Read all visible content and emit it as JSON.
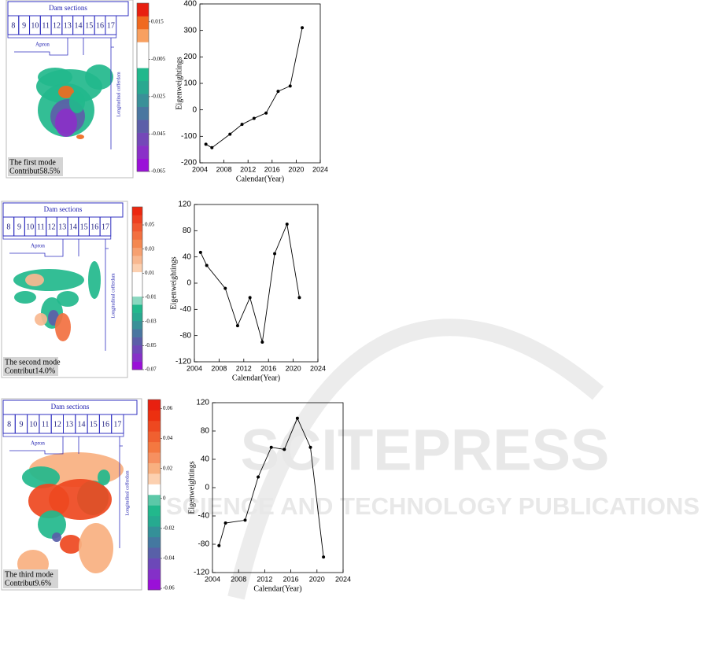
{
  "watermark": {
    "title": "SCITEPRESS",
    "subtitle": "SCIENCE AND TECHNOLOGY PUBLICATIONS"
  },
  "maps": [
    {
      "header": "Dam sections",
      "sections": [
        "8",
        "9",
        "10",
        "11",
        "12",
        "13",
        "14",
        "15",
        "16",
        "17"
      ],
      "apron": "Apron",
      "cofferdam": "Longitudinal cofferdam",
      "mode": "The first mode",
      "contribution": "Contribut58.5%",
      "colorbar": {
        "lim": [
          -0.065,
          0.025
        ],
        "ticks": [
          0.015,
          -0.005,
          -0.025,
          -0.045,
          -0.065
        ],
        "colors": [
          "#9a10d8",
          "#8a30c8",
          "#7448b8",
          "#5c5ea8",
          "#4a76a0",
          "#3a9098",
          "#2aa890",
          "#22b88c",
          "#ffffff",
          "#ffffff",
          "#f8a060",
          "#f06a20",
          "#e82010"
        ]
      }
    },
    {
      "header": "Dam sections",
      "sections": [
        "8",
        "9",
        "10",
        "11",
        "12",
        "13",
        "14",
        "15",
        "16",
        "17"
      ],
      "apron": "Apron",
      "cofferdam": "Longitudinal cofferdam",
      "mode": "The second mode",
      "contribution": "Contribut14.0%",
      "colorbar": {
        "lim": [
          -0.07,
          0.065
        ],
        "ticks": [
          0.05,
          0.03,
          0.01,
          -0.01,
          -0.03,
          -0.05,
          -0.07
        ],
        "colors": [
          "#9a10d8",
          "#8630c8",
          "#7048b8",
          "#5c5ea8",
          "#4a76a0",
          "#3a9098",
          "#2aa890",
          "#22b88c",
          "#8ad8c0",
          "#ffffff",
          "#ffffff",
          "#ffffff",
          "#fcd0b0",
          "#f8b890",
          "#f6a070",
          "#f48850",
          "#f27040",
          "#f05830",
          "#ee4020",
          "#ec2810"
        ]
      }
    },
    {
      "header": "Dam sections",
      "sections": [
        "8",
        "9",
        "10",
        "11",
        "12",
        "13",
        "14",
        "15",
        "16",
        "17"
      ],
      "apron": "Apron",
      "cofferdam": "Longitudinal cofferdam",
      "mode": "The third mode",
      "contribution": "Contribut9.6%",
      "colorbar": {
        "lim": [
          -0.061,
          0.066
        ],
        "ticks": [
          0.06,
          0.04,
          0.02,
          0,
          -0.02,
          -0.04,
          -0.06
        ],
        "colors": [
          "#9a10d8",
          "#8430c8",
          "#6c48b8",
          "#5860a8",
          "#4478a0",
          "#349098",
          "#26aa90",
          "#22b88c",
          "#5cc8a8",
          "#ffffff",
          "#fcd0b0",
          "#f8b080",
          "#f69060",
          "#f47840",
          "#f06030",
          "#ee4820",
          "#ec3010",
          "#e82010"
        ]
      }
    }
  ],
  "chart_data": [
    {
      "type": "line",
      "x": [
        2005,
        2006,
        2009,
        2011,
        2013,
        2015,
        2017,
        2019,
        2021
      ],
      "values": [
        -130,
        -143,
        -92,
        -55,
        -32,
        -12,
        70,
        90,
        310
      ],
      "xlim": [
        2004,
        2024
      ],
      "xticks": [
        2004,
        2008,
        2012,
        2016,
        2020,
        2024
      ],
      "ylim": [
        -200,
        400
      ],
      "yticks": [
        -200,
        -100,
        0,
        100,
        200,
        300,
        400
      ],
      "xlabel": "Calendar(Year)",
      "ylabel": "Eigenweightings",
      "color": "#000000"
    },
    {
      "type": "line",
      "x": [
        2005,
        2006,
        2009,
        2011,
        2013,
        2015,
        2017,
        2019,
        2021
      ],
      "values": [
        47,
        27,
        -8,
        -65,
        -22,
        -90,
        45,
        90,
        -22
      ],
      "xlim": [
        2004,
        2024
      ],
      "xticks": [
        2004,
        2008,
        2012,
        2016,
        2020,
        2024
      ],
      "ylim": [
        -120,
        120
      ],
      "yticks": [
        -120,
        -80,
        -40,
        0,
        40,
        80,
        120
      ],
      "xlabel": "Calendar(Year)",
      "ylabel": "Eigenweightings",
      "color": "#000000"
    },
    {
      "type": "line",
      "x": [
        2005,
        2006,
        2009,
        2011,
        2013,
        2015,
        2017,
        2019,
        2021
      ],
      "values": [
        -82,
        -50,
        -46,
        15,
        57,
        54,
        98,
        57,
        -98
      ],
      "xlim": [
        2004,
        2024
      ],
      "xticks": [
        2004,
        2008,
        2012,
        2016,
        2020,
        2024
      ],
      "ylim": [
        -120,
        120
      ],
      "yticks": [
        -120,
        -80,
        -40,
        0,
        40,
        80,
        120
      ],
      "xlabel": "Calendar(Year)",
      "ylabel": "Eigenweightings",
      "color": "#000000"
    }
  ]
}
